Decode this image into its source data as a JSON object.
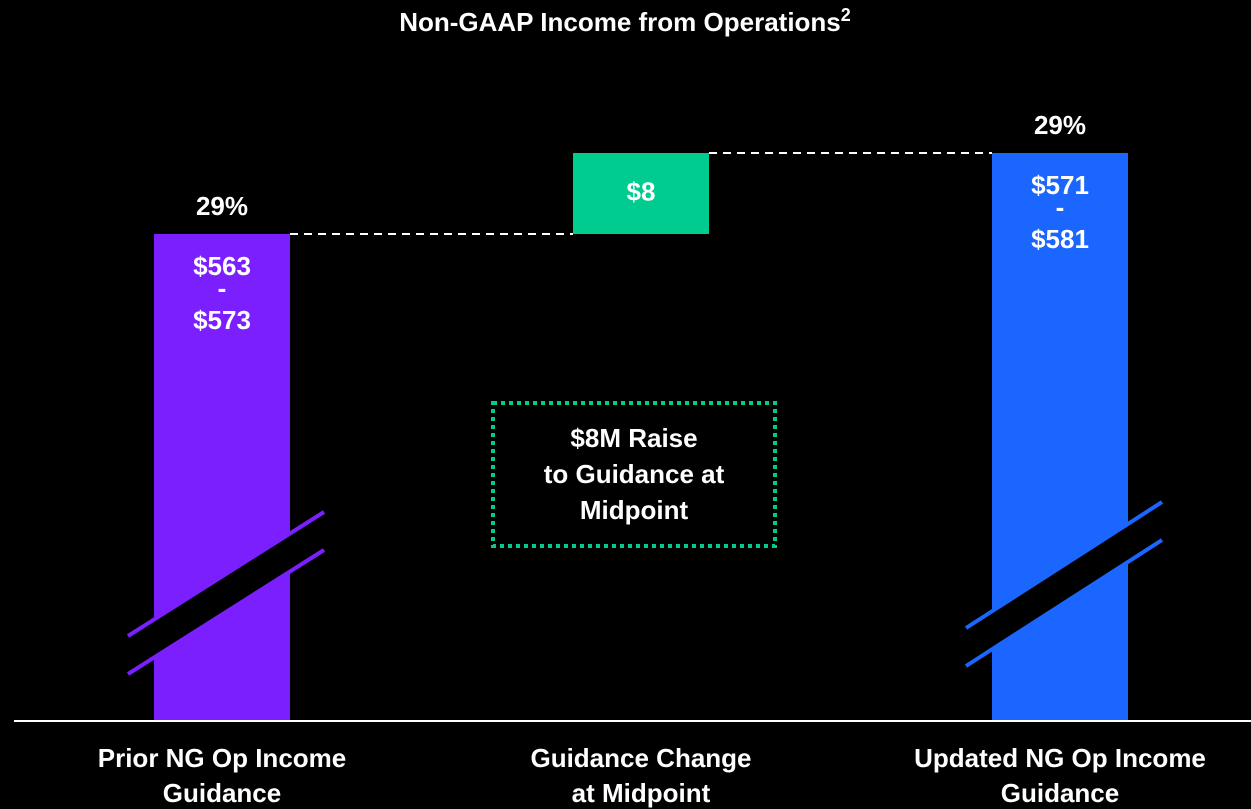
{
  "chart_data": {
    "type": "waterfall",
    "title": "Non-GAAP Income from Operations",
    "title_superscript": "2",
    "categories": [
      [
        "Prior NG Op Income",
        "Guidance"
      ],
      [
        "Guidance Change",
        "at Midpoint"
      ],
      [
        "Updated NG Op Income",
        "Guidance"
      ]
    ],
    "range_separator": "-",
    "bars": [
      {
        "low": 563,
        "high": 573,
        "low_label": "$563",
        "high_label": "$573",
        "margin": 29,
        "margin_label": "29%",
        "color": "#7b1fff"
      },
      {
        "value": 8,
        "value_label": "$8",
        "color": "#00cc8f"
      },
      {
        "low": 571,
        "high": 581,
        "low_label": "$571",
        "high_label": "$581",
        "margin": 29,
        "margin_label": "29%",
        "color": "#1a66ff"
      }
    ],
    "annotation": [
      "$8M Raise",
      "to Guidance at",
      "Midpoint"
    ],
    "annotation_color": "#00cc8f"
  }
}
